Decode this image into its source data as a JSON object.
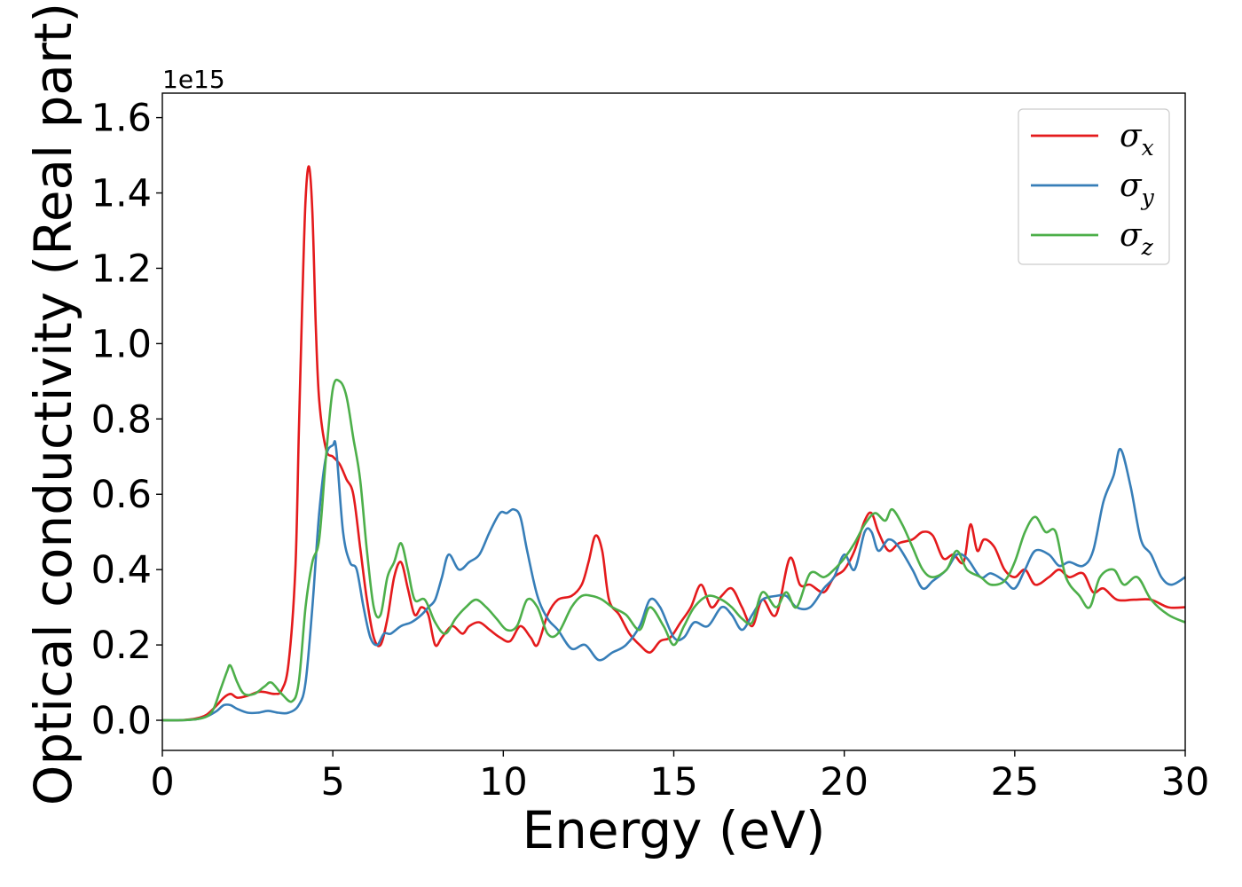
{
  "chart_data": {
    "type": "line",
    "title": "",
    "xlabel": "Energy (eV)",
    "ylabel": "Optical conductivity (Real part)",
    "y_offset_label": "1e15",
    "xlim": [
      0,
      30
    ],
    "ylim": [
      -0.08,
      1.665
    ],
    "xticks": [
      0,
      5,
      10,
      15,
      20,
      25,
      30
    ],
    "xtick_labels": [
      "0",
      "5",
      "10",
      "15",
      "20",
      "25",
      "30"
    ],
    "yticks": [
      0.0,
      0.2,
      0.4,
      0.6,
      0.8,
      1.0,
      1.2,
      1.4,
      1.6
    ],
    "ytick_labels": [
      "0.0",
      "0.2",
      "0.4",
      "0.6",
      "0.8",
      "1.0",
      "1.2",
      "1.4",
      "1.6"
    ],
    "grid": false,
    "legend_position": "top-right",
    "series": [
      {
        "name": "σx",
        "sym": "σ",
        "sub": "x",
        "color": "#e41a1c",
        "x": [
          0,
          0.5,
          1.0,
          1.3,
          1.6,
          1.8,
          2.0,
          2.2,
          2.5,
          2.8,
          3.0,
          3.3,
          3.5,
          3.7,
          3.9,
          4.0,
          4.1,
          4.2,
          4.3,
          4.4,
          4.5,
          4.6,
          4.8,
          5.0,
          5.2,
          5.4,
          5.6,
          5.8,
          6.0,
          6.2,
          6.4,
          6.6,
          6.8,
          7.0,
          7.2,
          7.4,
          7.6,
          7.8,
          8.0,
          8.2,
          8.5,
          8.8,
          9.0,
          9.3,
          9.6,
          9.9,
          10.2,
          10.5,
          10.8,
          11.0,
          11.3,
          11.6,
          12.0,
          12.3,
          12.5,
          12.7,
          12.9,
          13.1,
          13.4,
          13.7,
          14.0,
          14.3,
          14.6,
          14.9,
          15.2,
          15.5,
          15.8,
          16.1,
          16.4,
          16.7,
          17.0,
          17.3,
          17.6,
          18.0,
          18.4,
          18.7,
          19.0,
          19.4,
          19.7,
          20.0,
          20.3,
          20.6,
          20.8,
          21.0,
          21.3,
          21.6,
          22.0,
          22.3,
          22.6,
          22.9,
          23.2,
          23.5,
          23.7,
          23.9,
          24.1,
          24.4,
          24.7,
          25.0,
          25.3,
          25.6,
          26.0,
          26.3,
          26.6,
          27.0,
          27.3,
          27.6,
          28.0,
          28.5,
          29.0,
          29.5,
          30.0
        ],
        "y": [
          0.0,
          0.0,
          0.005,
          0.015,
          0.04,
          0.06,
          0.07,
          0.06,
          0.065,
          0.075,
          0.075,
          0.07,
          0.08,
          0.15,
          0.4,
          0.75,
          1.1,
          1.38,
          1.47,
          1.35,
          1.05,
          0.85,
          0.72,
          0.7,
          0.68,
          0.64,
          0.6,
          0.46,
          0.32,
          0.22,
          0.2,
          0.27,
          0.38,
          0.42,
          0.35,
          0.28,
          0.3,
          0.28,
          0.2,
          0.22,
          0.25,
          0.23,
          0.25,
          0.26,
          0.24,
          0.22,
          0.21,
          0.25,
          0.22,
          0.2,
          0.28,
          0.32,
          0.33,
          0.36,
          0.42,
          0.49,
          0.45,
          0.32,
          0.28,
          0.23,
          0.2,
          0.18,
          0.21,
          0.22,
          0.26,
          0.3,
          0.36,
          0.3,
          0.33,
          0.35,
          0.3,
          0.25,
          0.32,
          0.28,
          0.43,
          0.36,
          0.36,
          0.34,
          0.38,
          0.4,
          0.45,
          0.53,
          0.55,
          0.5,
          0.45,
          0.47,
          0.48,
          0.5,
          0.49,
          0.43,
          0.44,
          0.42,
          0.52,
          0.45,
          0.48,
          0.46,
          0.4,
          0.38,
          0.4,
          0.36,
          0.38,
          0.4,
          0.38,
          0.39,
          0.34,
          0.35,
          0.32,
          0.32,
          0.32,
          0.3,
          0.3
        ]
      },
      {
        "name": "σy",
        "sym": "σ",
        "sub": "y",
        "color": "#377eb8",
        "x": [
          0,
          0.5,
          1.0,
          1.3,
          1.6,
          1.8,
          2.0,
          2.2,
          2.5,
          2.8,
          3.1,
          3.4,
          3.7,
          4.0,
          4.2,
          4.4,
          4.6,
          4.8,
          5.0,
          5.1,
          5.3,
          5.5,
          5.7,
          5.9,
          6.1,
          6.3,
          6.5,
          6.7,
          7.0,
          7.3,
          7.6,
          7.8,
          8.0,
          8.2,
          8.4,
          8.7,
          9.0,
          9.3,
          9.6,
          9.9,
          10.1,
          10.3,
          10.5,
          10.7,
          11.0,
          11.3,
          11.6,
          12.0,
          12.4,
          12.8,
          13.2,
          13.6,
          14.0,
          14.3,
          14.6,
          15.0,
          15.3,
          15.6,
          16.0,
          16.4,
          16.7,
          17.0,
          17.3,
          17.6,
          18.0,
          18.3,
          18.6,
          19.0,
          19.4,
          19.7,
          20.0,
          20.3,
          20.6,
          20.8,
          21.0,
          21.3,
          21.6,
          22.0,
          22.3,
          22.6,
          23.0,
          23.3,
          23.6,
          24.0,
          24.3,
          24.7,
          25.0,
          25.3,
          25.6,
          26.0,
          26.3,
          26.6,
          27.0,
          27.3,
          27.6,
          27.9,
          28.1,
          28.4,
          28.7,
          29.0,
          29.3,
          29.6,
          30.0
        ],
        "y": [
          0.0,
          0.0,
          0.003,
          0.01,
          0.025,
          0.04,
          0.04,
          0.03,
          0.02,
          0.02,
          0.025,
          0.02,
          0.02,
          0.04,
          0.1,
          0.3,
          0.55,
          0.7,
          0.73,
          0.72,
          0.5,
          0.42,
          0.4,
          0.3,
          0.22,
          0.2,
          0.23,
          0.23,
          0.25,
          0.26,
          0.28,
          0.3,
          0.32,
          0.38,
          0.44,
          0.4,
          0.42,
          0.44,
          0.5,
          0.55,
          0.55,
          0.56,
          0.54,
          0.45,
          0.33,
          0.27,
          0.24,
          0.19,
          0.2,
          0.16,
          0.18,
          0.2,
          0.25,
          0.32,
          0.3,
          0.22,
          0.22,
          0.26,
          0.25,
          0.3,
          0.28,
          0.24,
          0.28,
          0.32,
          0.33,
          0.33,
          0.3,
          0.3,
          0.35,
          0.38,
          0.44,
          0.4,
          0.5,
          0.5,
          0.45,
          0.48,
          0.46,
          0.4,
          0.35,
          0.37,
          0.4,
          0.44,
          0.43,
          0.38,
          0.39,
          0.37,
          0.35,
          0.4,
          0.45,
          0.44,
          0.41,
          0.42,
          0.41,
          0.45,
          0.58,
          0.65,
          0.72,
          0.62,
          0.48,
          0.44,
          0.38,
          0.36,
          0.38
        ]
      },
      {
        "name": "σz",
        "sym": "σ",
        "sub": "z",
        "color": "#4daf4a",
        "x": [
          0,
          0.5,
          1.0,
          1.3,
          1.5,
          1.7,
          1.9,
          2.0,
          2.2,
          2.4,
          2.7,
          3.0,
          3.2,
          3.5,
          3.8,
          4.0,
          4.2,
          4.4,
          4.6,
          4.8,
          5.0,
          5.2,
          5.4,
          5.6,
          5.8,
          6.0,
          6.2,
          6.4,
          6.6,
          6.8,
          7.0,
          7.2,
          7.4,
          7.7,
          8.0,
          8.3,
          8.6,
          8.9,
          9.2,
          9.5,
          9.8,
          10.1,
          10.4,
          10.7,
          11.0,
          11.3,
          11.6,
          12.0,
          12.3,
          12.6,
          12.9,
          13.2,
          13.6,
          14.0,
          14.3,
          14.7,
          15.0,
          15.3,
          15.6,
          16.0,
          16.4,
          16.7,
          17.0,
          17.3,
          17.6,
          18.0,
          18.3,
          18.6,
          19.0,
          19.4,
          19.7,
          20.0,
          20.3,
          20.6,
          20.9,
          21.2,
          21.4,
          21.7,
          22.0,
          22.3,
          22.6,
          23.0,
          23.3,
          23.6,
          24.0,
          24.3,
          24.7,
          25.0,
          25.3,
          25.6,
          25.9,
          26.2,
          26.5,
          26.9,
          27.2,
          27.5,
          27.9,
          28.2,
          28.6,
          29.0,
          29.5,
          30.0
        ],
        "y": [
          0.0,
          0.0,
          0.003,
          0.01,
          0.03,
          0.08,
          0.13,
          0.145,
          0.1,
          0.07,
          0.07,
          0.09,
          0.1,
          0.07,
          0.05,
          0.1,
          0.3,
          0.42,
          0.48,
          0.7,
          0.88,
          0.9,
          0.86,
          0.75,
          0.64,
          0.45,
          0.3,
          0.28,
          0.38,
          0.42,
          0.47,
          0.4,
          0.32,
          0.32,
          0.26,
          0.23,
          0.27,
          0.3,
          0.32,
          0.3,
          0.27,
          0.24,
          0.25,
          0.32,
          0.3,
          0.23,
          0.23,
          0.3,
          0.33,
          0.33,
          0.32,
          0.3,
          0.28,
          0.24,
          0.3,
          0.25,
          0.2,
          0.25,
          0.3,
          0.33,
          0.32,
          0.3,
          0.27,
          0.26,
          0.34,
          0.3,
          0.34,
          0.3,
          0.39,
          0.38,
          0.4,
          0.43,
          0.47,
          0.52,
          0.55,
          0.53,
          0.56,
          0.52,
          0.46,
          0.4,
          0.38,
          0.4,
          0.45,
          0.4,
          0.38,
          0.36,
          0.37,
          0.42,
          0.5,
          0.54,
          0.5,
          0.5,
          0.38,
          0.33,
          0.3,
          0.38,
          0.4,
          0.36,
          0.38,
          0.32,
          0.28,
          0.26
        ]
      }
    ]
  }
}
